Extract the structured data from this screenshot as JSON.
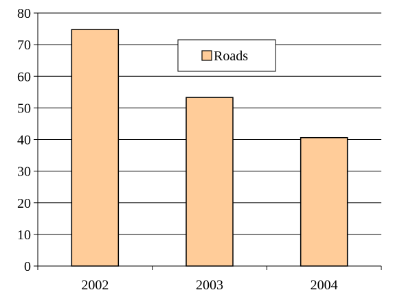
{
  "chart_data": {
    "type": "bar",
    "categories": [
      "2002",
      "2003",
      "2004"
    ],
    "series": [
      {
        "name": "Roads",
        "values": [
          74.8,
          53.3,
          40.6
        ],
        "color": "#FFCC99"
      }
    ],
    "ylim": [
      0,
      80
    ],
    "yticks": [
      "0",
      "10",
      "20",
      "30",
      "40",
      "50",
      "60",
      "70",
      "80"
    ],
    "grid": true,
    "legend_position": "top-center",
    "bar_border_color": "#000000",
    "grid_color": "#000000"
  }
}
